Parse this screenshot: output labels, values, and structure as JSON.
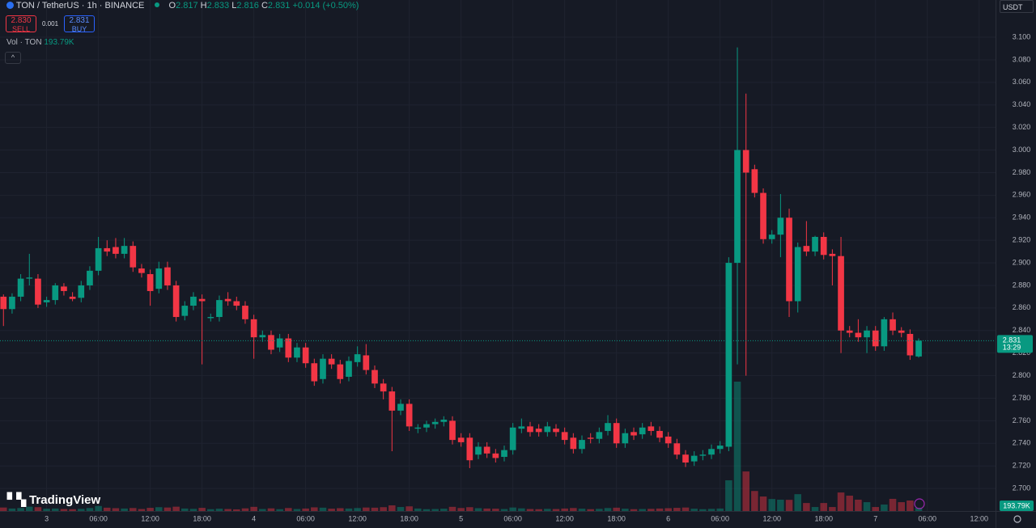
{
  "header": {
    "symbol": "TON / TetherUS · 1h · BINANCE",
    "ohlc": [
      {
        "label": "O",
        "value": "2.817"
      },
      {
        "label": "H",
        "value": "2.833"
      },
      {
        "label": "L",
        "value": "2.816"
      },
      {
        "label": "C",
        "value": "2.831"
      }
    ],
    "change": "+0.014 (+0.50%)",
    "sell_price": "2.830",
    "sell_label": "SELL",
    "spread": "0.001",
    "buy_price": "2.831",
    "buy_label": "BUY",
    "vol_name": "Vol · TON",
    "vol_value": "193.79K",
    "currency": "USDT",
    "logo": "TradingView"
  },
  "chart_data": {
    "type": "candlestick",
    "up_color": "#089981",
    "down_color": "#f23645",
    "grid": true,
    "xlim": [
      -0.4,
      114.9
    ],
    "xticks": [
      {
        "value": 5,
        "label": "3"
      },
      {
        "value": 11,
        "label": "06:00"
      },
      {
        "value": 17,
        "label": "12:00"
      },
      {
        "value": 23,
        "label": "18:00"
      },
      {
        "value": 29,
        "label": "4"
      },
      {
        "value": 35,
        "label": "06:00"
      },
      {
        "value": 41,
        "label": "12:00"
      },
      {
        "value": 47,
        "label": "18:00"
      },
      {
        "value": 53,
        "label": "5"
      },
      {
        "value": 59,
        "label": "06:00"
      },
      {
        "value": 65,
        "label": "12:00"
      },
      {
        "value": 71,
        "label": "18:00"
      },
      {
        "value": 77,
        "label": "6"
      },
      {
        "value": 83,
        "label": "06:00"
      },
      {
        "value": 89,
        "label": "12:00"
      },
      {
        "value": 95,
        "label": "18:00"
      },
      {
        "value": 101,
        "label": "7"
      },
      {
        "value": 107,
        "label": "06:00"
      },
      {
        "value": 113,
        "label": "12:00"
      }
    ],
    "ylim": [
      2.68,
      3.133
    ],
    "yticks": [
      {
        "value": 2.7,
        "label": "2.700"
      },
      {
        "value": 2.72,
        "label": "2.720"
      },
      {
        "value": 2.74,
        "label": "2.740"
      },
      {
        "value": 2.76,
        "label": "2.760"
      },
      {
        "value": 2.78,
        "label": "2.780"
      },
      {
        "value": 2.8,
        "label": "2.800"
      },
      {
        "value": 2.82,
        "label": "2.820"
      },
      {
        "value": 2.84,
        "label": "2.840"
      },
      {
        "value": 2.86,
        "label": "2.860"
      },
      {
        "value": 2.88,
        "label": "2.880"
      },
      {
        "value": 2.9,
        "label": "2.900"
      },
      {
        "value": 2.92,
        "label": "2.920"
      },
      {
        "value": 2.94,
        "label": "2.940"
      },
      {
        "value": 2.96,
        "label": "2.960"
      },
      {
        "value": 2.98,
        "label": "2.980"
      },
      {
        "value": 3.0,
        "label": "3.000"
      },
      {
        "value": 3.02,
        "label": "3.020"
      },
      {
        "value": 3.04,
        "label": "3.040"
      },
      {
        "value": 3.06,
        "label": "3.060"
      },
      {
        "value": 3.08,
        "label": "3.080"
      },
      {
        "value": 3.1,
        "label": "3.100"
      }
    ],
    "open": [
      2.87,
      2.859,
      2.87,
      2.886,
      2.886,
      2.865,
      2.867,
      2.879,
      2.87,
      2.869,
      2.88,
      2.893,
      2.913,
      2.914,
      2.908,
      2.915,
      2.895,
      2.89,
      2.877,
      2.896,
      2.88,
      2.853,
      2.862,
      2.868,
      2.851,
      2.852,
      2.868,
      2.866,
      2.862,
      2.85,
      2.834,
      2.836,
      2.825,
      2.833,
      2.816,
      2.825,
      2.811,
      2.797,
      2.815,
      2.81,
      2.799,
      2.812,
      2.818,
      2.805,
      2.793,
      2.786,
      2.769,
      2.775,
      2.753,
      2.754,
      2.757,
      2.759,
      2.76,
      2.745,
      2.745,
      2.73,
      2.737,
      2.731,
      2.728,
      2.734,
      2.753,
      2.755,
      2.753,
      2.75,
      2.753,
      2.75,
      2.745,
      2.735,
      2.745,
      2.744,
      2.751,
      2.758,
      2.74,
      2.75,
      2.748,
      2.755,
      2.751,
      2.746,
      2.74,
      2.73,
      2.724,
      2.729,
      2.73,
      2.735,
      2.737,
      2.9,
      3.0,
      2.983,
      2.962,
      2.921,
      2.925,
      2.94,
      2.866,
      2.915,
      2.91,
      2.923,
      2.908,
      2.906,
      2.84,
      2.838,
      2.834,
      2.84,
      2.826,
      2.85,
      2.84,
      2.837,
      2.817
    ],
    "high": [
      2.872,
      2.873,
      2.89,
      2.908,
      2.89,
      2.87,
      2.882,
      2.882,
      2.874,
      2.884,
      2.897,
      2.923,
      2.92,
      2.922,
      2.922,
      2.919,
      2.899,
      2.894,
      2.901,
      2.901,
      2.884,
      2.866,
      2.874,
      2.872,
      2.855,
      2.871,
      2.874,
      2.87,
      2.866,
      2.854,
      2.84,
      2.84,
      2.837,
      2.837,
      2.829,
      2.829,
      2.815,
      2.819,
      2.819,
      2.814,
      2.817,
      2.826,
      2.828,
      2.809,
      2.797,
      2.79,
      2.779,
      2.779,
      2.757,
      2.76,
      2.762,
      2.764,
      2.764,
      2.749,
      2.749,
      2.741,
      2.741,
      2.735,
      2.738,
      2.758,
      2.762,
      2.759,
      2.757,
      2.759,
      2.757,
      2.754,
      2.749,
      2.747,
      2.749,
      2.754,
      2.765,
      2.762,
      2.753,
      2.754,
      2.758,
      2.759,
      2.755,
      2.75,
      2.744,
      2.734,
      2.733,
      2.734,
      2.739,
      2.742,
      2.905,
      3.091,
      3.05,
      2.987,
      2.966,
      2.929,
      2.961,
      2.948,
      2.918,
      2.937,
      2.924,
      2.927,
      2.912,
      2.923,
      2.844,
      2.85,
      2.844,
      2.844,
      2.852,
      2.856,
      2.843,
      2.841,
      2.833
    ],
    "low": [
      2.844,
      2.855,
      2.866,
      2.88,
      2.86,
      2.861,
      2.863,
      2.871,
      2.866,
      2.865,
      2.876,
      2.889,
      2.906,
      2.904,
      2.904,
      2.892,
      2.887,
      2.862,
      2.873,
      2.876,
      2.848,
      2.849,
      2.858,
      2.81,
      2.848,
      2.848,
      2.862,
      2.858,
      2.846,
      2.815,
      2.83,
      2.819,
      2.821,
      2.812,
      2.812,
      2.807,
      2.791,
      2.793,
      2.806,
      2.793,
      2.795,
      2.808,
      2.801,
      2.789,
      2.779,
      2.733,
      2.765,
      2.751,
      2.749,
      2.75,
      2.753,
      2.755,
      2.739,
      2.737,
      2.718,
      2.726,
      2.727,
      2.723,
      2.724,
      2.73,
      2.749,
      2.746,
      2.746,
      2.746,
      2.746,
      2.739,
      2.731,
      2.731,
      2.74,
      2.74,
      2.747,
      2.736,
      2.736,
      2.743,
      2.744,
      2.747,
      2.741,
      2.736,
      2.726,
      2.719,
      2.72,
      2.725,
      2.726,
      2.731,
      2.733,
      2.81,
      2.8,
      2.958,
      2.917,
      2.917,
      2.905,
      2.852,
      2.856,
      2.906,
      2.906,
      2.903,
      2.88,
      2.82,
      2.834,
      2.83,
      2.82,
      2.822,
      2.822,
      2.836,
      2.834,
      2.814,
      2.816
    ],
    "close": [
      2.859,
      2.87,
      2.886,
      2.887,
      2.863,
      2.867,
      2.88,
      2.875,
      2.868,
      2.88,
      2.893,
      2.913,
      2.91,
      2.908,
      2.915,
      2.896,
      2.891,
      2.875,
      2.895,
      2.88,
      2.852,
      2.862,
      2.87,
      2.866,
      2.852,
      2.867,
      2.866,
      2.862,
      2.85,
      2.834,
      2.836,
      2.823,
      2.833,
      2.816,
      2.825,
      2.811,
      2.795,
      2.815,
      2.81,
      2.797,
      2.813,
      2.819,
      2.805,
      2.793,
      2.786,
      2.769,
      2.775,
      2.755,
      2.754,
      2.757,
      2.759,
      2.761,
      2.743,
      2.741,
      2.725,
      2.737,
      2.731,
      2.727,
      2.734,
      2.754,
      2.755,
      2.75,
      2.75,
      2.755,
      2.75,
      2.743,
      2.735,
      2.743,
      2.744,
      2.75,
      2.758,
      2.74,
      2.749,
      2.747,
      2.754,
      2.751,
      2.745,
      2.74,
      2.73,
      2.723,
      2.729,
      2.73,
      2.735,
      2.738,
      2.9,
      3.0,
      2.98,
      2.962,
      2.921,
      2.925,
      2.94,
      2.866,
      2.914,
      2.91,
      2.923,
      2.907,
      2.906,
      2.84,
      2.838,
      2.834,
      2.84,
      2.826,
      2.85,
      2.84,
      2.838,
      2.818,
      2.831
    ],
    "volume": [
      210000,
      150000,
      180000,
      260000,
      230000,
      140000,
      150000,
      120000,
      110000,
      130000,
      180000,
      300000,
      200000,
      170000,
      150000,
      180000,
      120000,
      190000,
      230000,
      210000,
      260000,
      150000,
      130000,
      190000,
      110000,
      140000,
      120000,
      100000,
      160000,
      250000,
      120000,
      160000,
      110000,
      180000,
      120000,
      150000,
      220000,
      200000,
      140000,
      170000,
      150000,
      180000,
      210000,
      200000,
      230000,
      340000,
      240000,
      280000,
      150000,
      110000,
      120000,
      140000,
      250000,
      180000,
      230000,
      170000,
      150000,
      140000,
      120000,
      210000,
      160000,
      120000,
      110000,
      130000,
      120000,
      150000,
      180000,
      140000,
      110000,
      130000,
      180000,
      200000,
      140000,
      110000,
      120000,
      130000,
      150000,
      170000,
      190000,
      210000,
      140000,
      110000,
      130000,
      150000,
      1840000,
      7750000,
      2370000,
      1200000,
      870000,
      720000,
      680000,
      670000,
      1010000,
      480000,
      240000,
      480000,
      240000,
      1110000,
      920000,
      680000,
      530000,
      240000,
      390000,
      730000,
      530000,
      630000,
      193790
    ],
    "volume_last_label": "193.79K",
    "last_price": 2.831,
    "countdown": "13:29"
  }
}
